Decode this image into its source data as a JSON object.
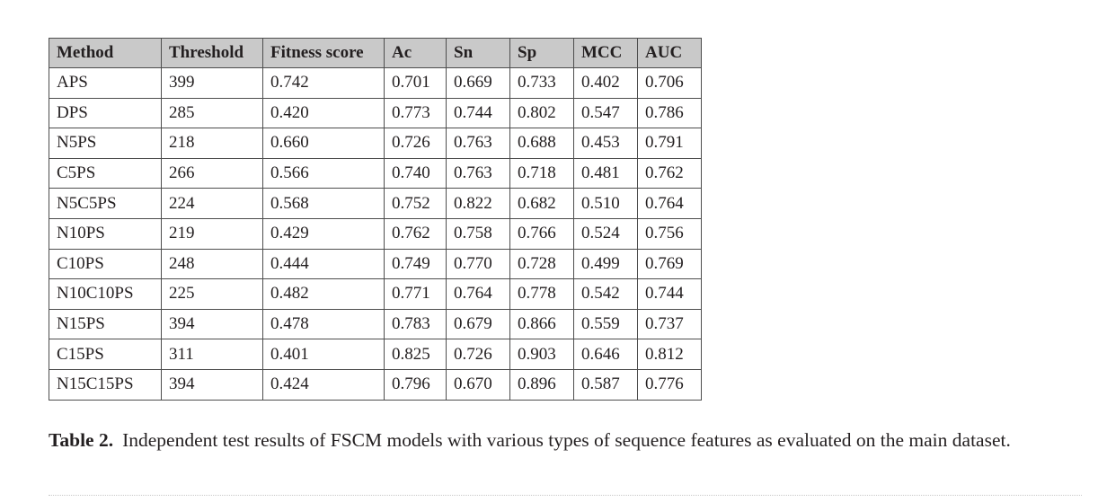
{
  "table": {
    "headers": [
      "Method",
      "Threshold",
      "Fitness score",
      "Ac",
      "Sn",
      "Sp",
      "MCC",
      "AUC"
    ],
    "rows": [
      [
        "APS",
        "399",
        "0.742",
        "0.701",
        "0.669",
        "0.733",
        "0.402",
        "0.706"
      ],
      [
        "DPS",
        "285",
        "0.420",
        "0.773",
        "0.744",
        "0.802",
        "0.547",
        "0.786"
      ],
      [
        "N5PS",
        "218",
        "0.660",
        "0.726",
        "0.763",
        "0.688",
        "0.453",
        "0.791"
      ],
      [
        "C5PS",
        "266",
        "0.566",
        "0.740",
        "0.763",
        "0.718",
        "0.481",
        "0.762"
      ],
      [
        "N5C5PS",
        "224",
        "0.568",
        "0.752",
        "0.822",
        "0.682",
        "0.510",
        "0.764"
      ],
      [
        "N10PS",
        "219",
        "0.429",
        "0.762",
        "0.758",
        "0.766",
        "0.524",
        "0.756"
      ],
      [
        "C10PS",
        "248",
        "0.444",
        "0.749",
        "0.770",
        "0.728",
        "0.499",
        "0.769"
      ],
      [
        "N10C10PS",
        "225",
        "0.482",
        "0.771",
        "0.764",
        "0.778",
        "0.542",
        "0.744"
      ],
      [
        "N15PS",
        "394",
        "0.478",
        "0.783",
        "0.679",
        "0.866",
        "0.559",
        "0.737"
      ],
      [
        "C15PS",
        "311",
        "0.401",
        "0.825",
        "0.726",
        "0.903",
        "0.646",
        "0.812"
      ],
      [
        "N15C15PS",
        "394",
        "0.424",
        "0.796",
        "0.670",
        "0.896",
        "0.587",
        "0.776"
      ]
    ]
  },
  "caption": {
    "label": "Table 2.",
    "text": "Independent test results of FSCM models with various types of sequence features as evaluated on the main dataset."
  },
  "colors": {
    "header_background": "#c9c9c9",
    "border": "#4d4d4d",
    "text": "#231f20"
  }
}
